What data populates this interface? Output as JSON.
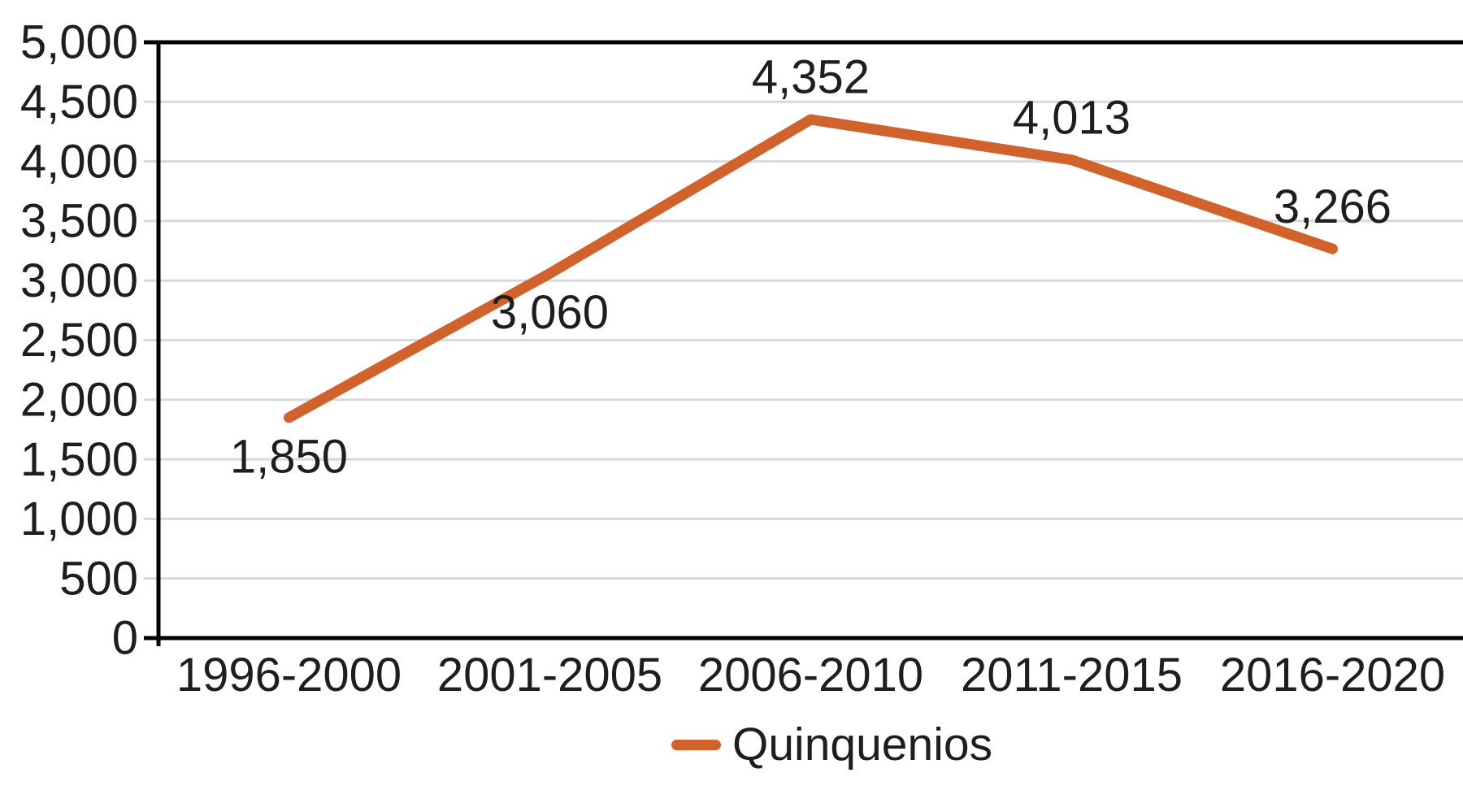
{
  "chart_data": {
    "type": "line",
    "title": "",
    "xlabel": "",
    "ylabel": "",
    "categories": [
      "1996-2000",
      "2001-2005",
      "2006-2010",
      "2011-2015",
      "2016-2020"
    ],
    "series": [
      {
        "name": "Quinquenios",
        "values": [
          1850,
          3060,
          4352,
          4013,
          3266
        ],
        "data_labels": [
          "1,850",
          "3,060",
          "4,352",
          "4,013",
          "3,266"
        ],
        "label_positions": [
          "below",
          "below",
          "above",
          "above",
          "above"
        ]
      }
    ],
    "y_axis": {
      "min": 0,
      "max": 5000,
      "step": 500,
      "tick_labels": [
        "0",
        "500",
        "1,000",
        "1,500",
        "2,000",
        "2,500",
        "3,000",
        "3,500",
        "4,000",
        "4,500",
        "5,000"
      ]
    },
    "grid": true,
    "legend": {
      "label": "Quinquenios",
      "position": "bottom"
    },
    "colors": {
      "line": "#D2622C",
      "grid": "#D9D9D9",
      "axis": "#000000",
      "text": "#1E1E1E",
      "background": "#FFFFFF"
    }
  }
}
